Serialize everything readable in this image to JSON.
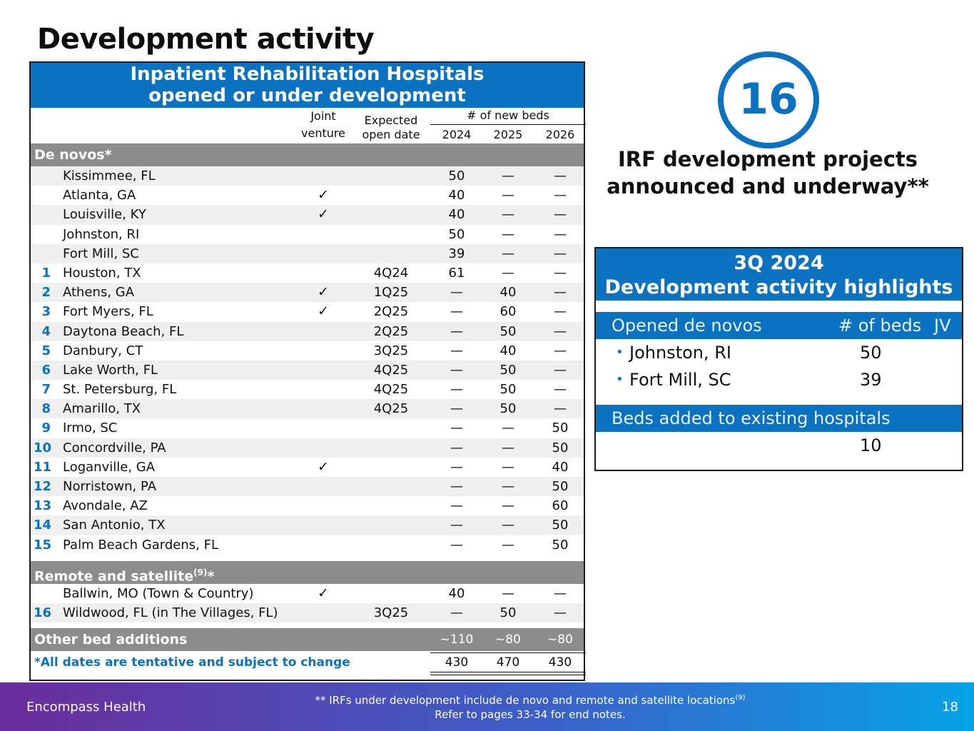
{
  "title": "Development activity",
  "table": {
    "header_line1": "Inpatient Rehabilitation Hospitals",
    "header_line2": "opened or under development",
    "col_joint_line1": "Joint",
    "col_joint_line2": "venture",
    "col_date_line1": "Expected",
    "col_date_line2": "open date",
    "col_beds": "# of new beds",
    "years": [
      "2024",
      "2025",
      "2026"
    ],
    "sections": {
      "denovos": "De novos*",
      "remote": "Remote and satellite",
      "remote_sup": "(9)",
      "remote_suffix": "*",
      "other": "Other bed additions"
    },
    "check": "✓",
    "denovo_rows": [
      {
        "num": "",
        "name": "Kissimmee, FL",
        "jv": "",
        "date": "",
        "b2024": "50",
        "b2025": "—",
        "b2026": "—"
      },
      {
        "num": "",
        "name": "Atlanta, GA",
        "jv": "✓",
        "date": "",
        "b2024": "40",
        "b2025": "—",
        "b2026": "—"
      },
      {
        "num": "",
        "name": "Louisville, KY",
        "jv": "✓",
        "date": "",
        "b2024": "40",
        "b2025": "—",
        "b2026": "—"
      },
      {
        "num": "",
        "name": "Johnston, RI",
        "jv": "",
        "date": "",
        "b2024": "50",
        "b2025": "—",
        "b2026": "—"
      },
      {
        "num": "",
        "name": "Fort Mill, SC",
        "jv": "",
        "date": "",
        "b2024": "39",
        "b2025": "—",
        "b2026": "—"
      },
      {
        "num": "1",
        "name": "Houston, TX",
        "jv": "",
        "date": "4Q24",
        "b2024": "61",
        "b2025": "—",
        "b2026": "—"
      },
      {
        "num": "2",
        "name": "Athens, GA",
        "jv": "✓",
        "date": "1Q25",
        "b2024": "—",
        "b2025": "40",
        "b2026": "—"
      },
      {
        "num": "3",
        "name": "Fort Myers, FL",
        "jv": "✓",
        "date": "2Q25",
        "b2024": "—",
        "b2025": "60",
        "b2026": "—"
      },
      {
        "num": "4",
        "name": "Daytona Beach, FL",
        "jv": "",
        "date": "2Q25",
        "b2024": "—",
        "b2025": "50",
        "b2026": "—"
      },
      {
        "num": "5",
        "name": "Danbury, CT",
        "jv": "",
        "date": "3Q25",
        "b2024": "—",
        "b2025": "40",
        "b2026": "—"
      },
      {
        "num": "6",
        "name": "Lake Worth, FL",
        "jv": "",
        "date": "4Q25",
        "b2024": "—",
        "b2025": "50",
        "b2026": "—"
      },
      {
        "num": "7",
        "name": "St. Petersburg, FL",
        "jv": "",
        "date": "4Q25",
        "b2024": "—",
        "b2025": "50",
        "b2026": "—"
      },
      {
        "num": "8",
        "name": "Amarillo, TX",
        "jv": "",
        "date": "4Q25",
        "b2024": "—",
        "b2025": "50",
        "b2026": "—"
      },
      {
        "num": "9",
        "name": "Irmo, SC",
        "jv": "",
        "date": "",
        "b2024": "—",
        "b2025": "—",
        "b2026": "50"
      },
      {
        "num": "10",
        "name": "Concordville, PA",
        "jv": "",
        "date": "",
        "b2024": "—",
        "b2025": "—",
        "b2026": "50"
      },
      {
        "num": "11",
        "name": "Loganville, GA",
        "jv": "✓",
        "date": "",
        "b2024": "—",
        "b2025": "—",
        "b2026": "40"
      },
      {
        "num": "12",
        "name": "Norristown, PA",
        "jv": "",
        "date": "",
        "b2024": "—",
        "b2025": "—",
        "b2026": "50"
      },
      {
        "num": "13",
        "name": "Avondale, AZ",
        "jv": "",
        "date": "",
        "b2024": "—",
        "b2025": "—",
        "b2026": "60"
      },
      {
        "num": "14",
        "name": "San Antonio, TX",
        "jv": "",
        "date": "",
        "b2024": "—",
        "b2025": "—",
        "b2026": "50"
      },
      {
        "num": "15",
        "name": "Palm Beach Gardens, FL",
        "jv": "",
        "date": "",
        "b2024": "—",
        "b2025": "—",
        "b2026": "50"
      }
    ],
    "remote_rows": [
      {
        "num": "",
        "name": "Ballwin, MO (Town & Country)",
        "jv": "✓",
        "date": "",
        "b2024": "40",
        "b2025": "—",
        "b2026": "—"
      },
      {
        "num": "16",
        "name": "Wildwood, FL (in The Villages, FL)",
        "jv": "",
        "date": "3Q25",
        "b2024": "—",
        "b2025": "50",
        "b2026": "—"
      }
    ],
    "other": {
      "b2024": "~110",
      "b2025": "~80",
      "b2026": "~80"
    },
    "footnote": "*All dates are tentative and subject to change",
    "totals": {
      "b2024": "430",
      "b2025": "470",
      "b2026": "430"
    }
  },
  "circle": {
    "value": "16",
    "caption_line1": "IRF development projects",
    "caption_line2": "announced and underway**"
  },
  "highlights": {
    "title_line1": "3Q 2024",
    "title_line2": "Development activity highlights",
    "col_opened": "Opened de novos",
    "col_beds": "# of beds",
    "col_jv": "JV",
    "opened": [
      {
        "name": "Johnston, RI",
        "beds": "50"
      },
      {
        "name": "Fort Mill, SC",
        "beds": "39"
      }
    ],
    "beds_added_label": "Beds added to existing hospitals",
    "beds_added_value": "10",
    "bullet": "•"
  },
  "footer": {
    "brand": "Encompass Health",
    "note_line1": "** IRFs under development include de novo and remote and satellite locations",
    "note_sup": "(9)",
    "note_line2": "Refer to pages 33-34 for end notes.",
    "page": "18"
  },
  "colors": {
    "accent": "#0b72c1",
    "section_gray": "#8c8c8c",
    "alt_row": "#efefef"
  }
}
